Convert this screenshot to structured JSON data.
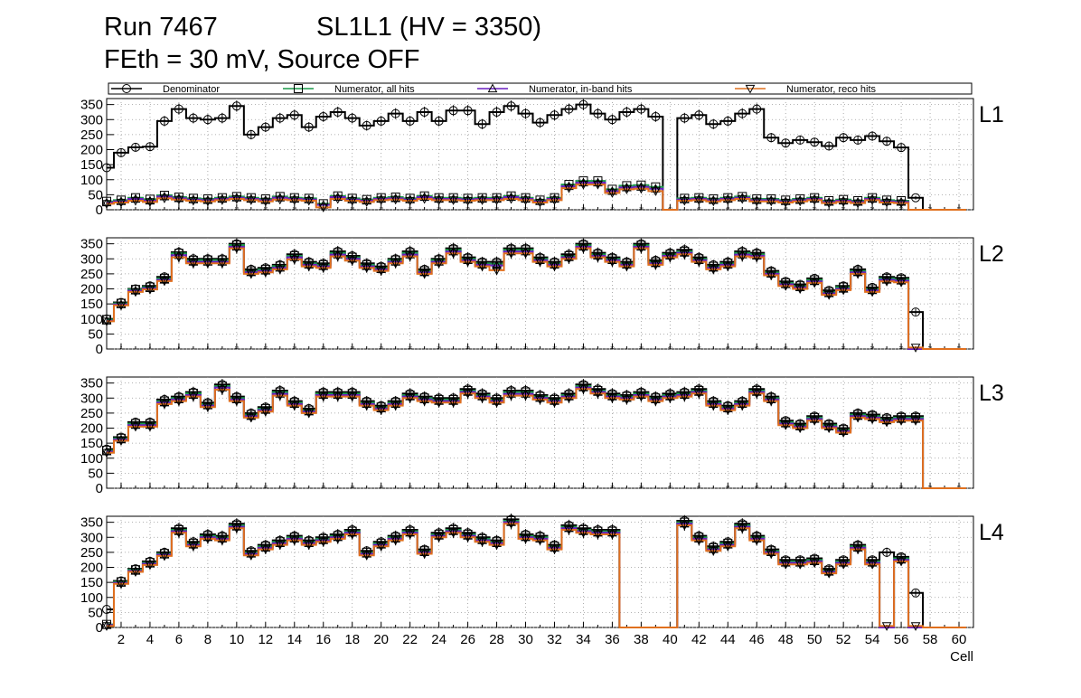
{
  "header": {
    "run": "Run 7467",
    "chamber": "SL1L1 (HV = 3350)",
    "conditions": "FEth = 30 mV, Source OFF"
  },
  "colors": {
    "denominator": "#000000",
    "all_hits": "#1a9a4a",
    "in_band": "#6a1fc0",
    "reco": "#e0701e",
    "grid": "#9a9a9a"
  },
  "chart_data": {
    "type": "histogram-step",
    "xlabel": "Cell",
    "xlim": [
      1,
      61
    ],
    "ylim": [
      0,
      370
    ],
    "x_ticks": [
      2,
      4,
      6,
      8,
      10,
      12,
      14,
      16,
      18,
      20,
      22,
      24,
      26,
      28,
      30,
      32,
      34,
      36,
      38,
      40,
      42,
      44,
      46,
      48,
      50,
      52,
      54,
      56,
      58,
      60
    ],
    "y_ticks": [
      0,
      50,
      100,
      150,
      200,
      250,
      300,
      350
    ],
    "legend": [
      {
        "name": "Denominator",
        "marker": "circle",
        "color": "#000000"
      },
      {
        "name": "Numerator, all hits",
        "marker": "square",
        "color": "#1a9a4a"
      },
      {
        "name": "Numerator, in-band hits",
        "marker": "triangle-up",
        "color": "#6a1fc0"
      },
      {
        "name": "Numerator, reco hits",
        "marker": "triangle-down",
        "color": "#e0701e"
      }
    ],
    "cells": [
      1,
      2,
      3,
      4,
      5,
      6,
      7,
      8,
      9,
      10,
      11,
      12,
      13,
      14,
      15,
      16,
      17,
      18,
      19,
      20,
      21,
      22,
      23,
      24,
      25,
      26,
      27,
      28,
      29,
      30,
      31,
      32,
      33,
      34,
      35,
      36,
      37,
      38,
      39,
      40,
      41,
      42,
      43,
      44,
      45,
      46,
      47,
      48,
      49,
      50,
      51,
      52,
      53,
      54,
      55,
      56,
      57,
      58,
      59,
      60
    ],
    "panels": [
      {
        "label": "L1",
        "denominator": [
          140,
          190,
          208,
          210,
          295,
          335,
          305,
          300,
          305,
          345,
          250,
          275,
          305,
          315,
          275,
          310,
          325,
          305,
          280,
          295,
          320,
          295,
          325,
          295,
          330,
          330,
          285,
          325,
          345,
          320,
          290,
          315,
          335,
          350,
          320,
          300,
          325,
          335,
          310,
          0,
          305,
          315,
          285,
          295,
          320,
          335,
          240,
          222,
          232,
          225,
          212,
          240,
          232,
          245,
          228,
          207,
          40,
          0,
          0,
          0
        ],
        "all_hits": [
          28,
          32,
          40,
          35,
          48,
          42,
          38,
          36,
          40,
          44,
          40,
          36,
          44,
          40,
          38,
          20,
          46,
          38,
          34,
          40,
          42,
          38,
          46,
          40,
          40,
          38,
          40,
          40,
          46,
          40,
          32,
          40,
          84,
          96,
          96,
          68,
          80,
          82,
          76,
          0,
          38,
          40,
          36,
          40,
          44,
          36,
          36,
          32,
          36,
          40,
          30,
          34,
          30,
          40,
          32,
          30,
          0,
          0,
          0,
          0
        ],
        "in_band": [
          24,
          28,
          36,
          30,
          44,
          38,
          34,
          32,
          36,
          40,
          36,
          32,
          40,
          36,
          34,
          16,
          42,
          34,
          30,
          36,
          38,
          34,
          42,
          36,
          36,
          34,
          36,
          36,
          42,
          36,
          28,
          36,
          78,
          90,
          90,
          62,
          74,
          76,
          70,
          0,
          34,
          36,
          32,
          36,
          40,
          32,
          32,
          28,
          32,
          36,
          26,
          30,
          26,
          36,
          28,
          26,
          0,
          0,
          0,
          0
        ],
        "reco": [
          20,
          24,
          30,
          26,
          38,
          34,
          30,
          28,
          32,
          36,
          32,
          28,
          34,
          32,
          30,
          8,
          36,
          30,
          26,
          32,
          34,
          30,
          36,
          32,
          32,
          30,
          32,
          32,
          36,
          32,
          24,
          32,
          72,
          84,
          84,
          56,
          68,
          70,
          62,
          0,
          30,
          32,
          28,
          32,
          36,
          28,
          28,
          24,
          28,
          32,
          22,
          26,
          22,
          32,
          24,
          22,
          0,
          0,
          0,
          0
        ]
      },
      {
        "label": "L2",
        "denominator": [
          100,
          155,
          200,
          210,
          240,
          322,
          300,
          300,
          300,
          350,
          265,
          270,
          280,
          315,
          290,
          285,
          325,
          310,
          285,
          275,
          300,
          325,
          265,
          300,
          335,
          305,
          290,
          290,
          335,
          335,
          305,
          290,
          315,
          350,
          320,
          305,
          290,
          350,
          295,
          320,
          330,
          305,
          280,
          290,
          325,
          320,
          260,
          225,
          215,
          235,
          195,
          210,
          265,
          205,
          240,
          237,
          123,
          0,
          0,
          0
        ],
        "all_hits": [
          98,
          152,
          198,
          206,
          235,
          318,
          295,
          296,
          296,
          346,
          260,
          265,
          276,
          310,
          285,
          280,
          320,
          305,
          280,
          270,
          296,
          320,
          260,
          296,
          330,
          300,
          285,
          284,
          330,
          330,
          300,
          285,
          310,
          345,
          315,
          300,
          285,
          345,
          290,
          315,
          325,
          300,
          275,
          285,
          320,
          315,
          255,
          220,
          210,
          230,
          190,
          206,
          260,
          200,
          235,
          232,
          0,
          0,
          0,
          0
        ],
        "in_band": [
          94,
          148,
          194,
          202,
          230,
          312,
          290,
          290,
          290,
          340,
          255,
          260,
          270,
          305,
          280,
          275,
          314,
          300,
          275,
          265,
          290,
          314,
          255,
          290,
          324,
          295,
          280,
          278,
          324,
          324,
          295,
          280,
          305,
          340,
          310,
          295,
          280,
          340,
          285,
          310,
          320,
          295,
          270,
          280,
          314,
          310,
          250,
          215,
          205,
          225,
          185,
          200,
          255,
          195,
          230,
          227,
          0,
          0,
          0,
          0
        ],
        "reco": [
          92,
          145,
          190,
          198,
          226,
          305,
          285,
          285,
          285,
          335,
          250,
          255,
          265,
          298,
          275,
          270,
          308,
          294,
          270,
          260,
          285,
          308,
          250,
          285,
          318,
          290,
          275,
          262,
          318,
          318,
          290,
          275,
          300,
          335,
          305,
          290,
          275,
          335,
          280,
          305,
          315,
          290,
          265,
          275,
          308,
          305,
          245,
          210,
          200,
          220,
          180,
          196,
          250,
          190,
          225,
          222,
          5,
          0,
          0,
          0
        ]
      },
      {
        "label": "L3",
        "denominator": [
          130,
          170,
          220,
          220,
          295,
          305,
          320,
          285,
          345,
          305,
          250,
          270,
          325,
          290,
          265,
          320,
          320,
          320,
          290,
          275,
          290,
          315,
          305,
          300,
          300,
          330,
          315,
          300,
          325,
          325,
          310,
          300,
          315,
          345,
          330,
          315,
          310,
          320,
          305,
          315,
          320,
          330,
          290,
          275,
          290,
          330,
          305,
          225,
          215,
          240,
          215,
          200,
          250,
          245,
          235,
          240,
          240,
          0,
          0,
          0
        ],
        "all_hits": [
          126,
          166,
          215,
          215,
          290,
          300,
          316,
          280,
          340,
          300,
          245,
          265,
          320,
          285,
          260,
          315,
          315,
          315,
          285,
          270,
          285,
          310,
          300,
          295,
          295,
          325,
          310,
          295,
          320,
          320,
          305,
          295,
          310,
          340,
          325,
          310,
          305,
          315,
          300,
          310,
          315,
          325,
          285,
          270,
          285,
          325,
          300,
          220,
          210,
          235,
          210,
          195,
          245,
          240,
          230,
          235,
          235,
          0,
          0,
          0
        ],
        "in_band": [
          122,
          162,
          210,
          210,
          285,
          295,
          310,
          275,
          335,
          295,
          240,
          260,
          314,
          280,
          255,
          310,
          310,
          310,
          280,
          265,
          280,
          305,
          295,
          290,
          290,
          320,
          305,
          290,
          314,
          314,
          300,
          290,
          305,
          335,
          320,
          305,
          300,
          310,
          295,
          305,
          310,
          320,
          280,
          265,
          280,
          320,
          295,
          215,
          205,
          230,
          205,
          190,
          240,
          235,
          225,
          230,
          230,
          0,
          0,
          0
        ],
        "reco": [
          118,
          158,
          205,
          205,
          280,
          290,
          305,
          270,
          328,
          290,
          235,
          255,
          308,
          275,
          250,
          305,
          305,
          305,
          275,
          260,
          275,
          300,
          290,
          285,
          285,
          315,
          300,
          285,
          308,
          308,
          295,
          285,
          300,
          330,
          315,
          300,
          295,
          305,
          290,
          300,
          305,
          315,
          275,
          260,
          275,
          315,
          290,
          210,
          200,
          225,
          200,
          185,
          235,
          230,
          220,
          225,
          225,
          0,
          0,
          0
        ]
      },
      {
        "label": "L4",
        "denominator": [
          60,
          155,
          195,
          220,
          250,
          330,
          285,
          310,
          305,
          345,
          255,
          275,
          290,
          305,
          290,
          300,
          310,
          325,
          255,
          285,
          305,
          325,
          260,
          315,
          330,
          315,
          300,
          290,
          360,
          310,
          305,
          275,
          340,
          330,
          325,
          325,
          0,
          0,
          0,
          0,
          355,
          305,
          270,
          285,
          345,
          305,
          260,
          225,
          225,
          230,
          195,
          225,
          275,
          225,
          250,
          235,
          115,
          0,
          0,
          0
        ],
        "all_hits": [
          10,
          152,
          192,
          216,
          246,
          325,
          280,
          305,
          300,
          340,
          250,
          270,
          285,
          300,
          285,
          295,
          305,
          320,
          250,
          280,
          300,
          320,
          255,
          310,
          325,
          310,
          295,
          285,
          355,
          305,
          300,
          270,
          335,
          325,
          320,
          320,
          0,
          0,
          0,
          0,
          350,
          300,
          265,
          280,
          340,
          300,
          255,
          220,
          220,
          225,
          190,
          220,
          270,
          220,
          0,
          230,
          0,
          0,
          0,
          0
        ],
        "in_band": [
          8,
          148,
          188,
          212,
          242,
          320,
          275,
          300,
          295,
          335,
          245,
          265,
          280,
          295,
          280,
          290,
          300,
          315,
          245,
          275,
          295,
          315,
          250,
          305,
          320,
          305,
          290,
          280,
          350,
          300,
          295,
          265,
          330,
          320,
          315,
          315,
          0,
          0,
          0,
          0,
          345,
          295,
          260,
          275,
          335,
          295,
          250,
          215,
          215,
          220,
          185,
          215,
          265,
          215,
          0,
          225,
          0,
          0,
          0,
          0
        ],
        "reco": [
          5,
          145,
          185,
          208,
          238,
          315,
          270,
          295,
          290,
          330,
          240,
          260,
          275,
          290,
          275,
          285,
          295,
          310,
          240,
          270,
          290,
          310,
          245,
          300,
          315,
          300,
          285,
          275,
          345,
          295,
          290,
          260,
          325,
          315,
          310,
          310,
          0,
          0,
          0,
          0,
          340,
          290,
          255,
          270,
          330,
          290,
          245,
          210,
          210,
          215,
          180,
          210,
          260,
          210,
          5,
          220,
          5,
          0,
          0,
          0
        ]
      }
    ]
  }
}
